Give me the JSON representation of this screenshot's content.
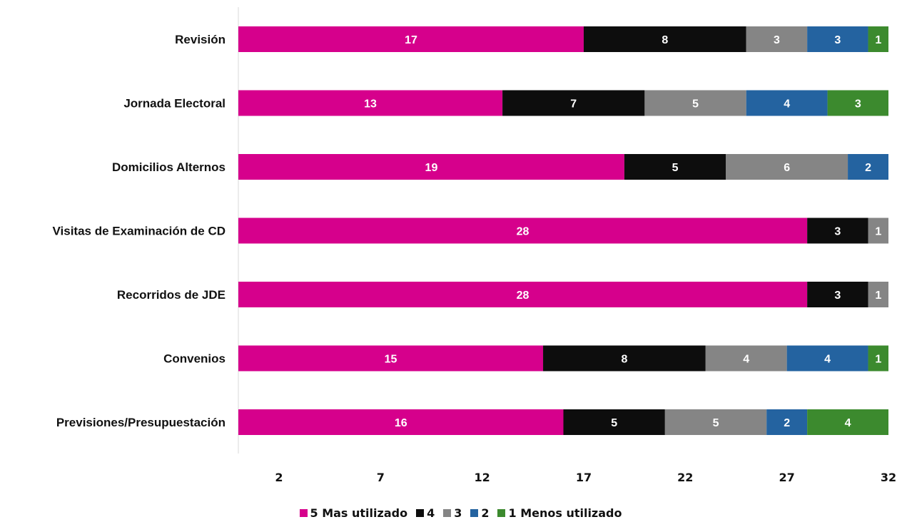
{
  "chart_data": {
    "type": "bar",
    "orientation": "horizontal",
    "stacked": true,
    "categories": [
      "Revisión",
      "Jornada Electoral",
      "Domicilios Alternos",
      "Visitas de Examinación de CD",
      "Recorridos de JDE",
      "Convenios",
      "Previsiones/Presupuestación"
    ],
    "series": [
      {
        "name": "5 Mas utilizado",
        "color": "#d6008c",
        "values": [
          17,
          13,
          19,
          28,
          28,
          15,
          16
        ]
      },
      {
        "name": "4",
        "color": "#0d0d0d",
        "values": [
          8,
          7,
          5,
          3,
          3,
          8,
          5
        ]
      },
      {
        "name": "3",
        "color": "#858585",
        "values": [
          3,
          5,
          6,
          1,
          1,
          4,
          5
        ]
      },
      {
        "name": "2",
        "color": "#2463a0",
        "values": [
          3,
          4,
          2,
          0,
          0,
          4,
          2
        ]
      },
      {
        "name": "1 Menos utilizado",
        "color": "#3c8a2e",
        "values": [
          1,
          3,
          0,
          0,
          0,
          1,
          4
        ]
      }
    ],
    "xlim": [
      0,
      32
    ],
    "xticks": [
      "2",
      "7",
      "12",
      "17",
      "22",
      "27",
      "32"
    ],
    "xtick_values": [
      2,
      7,
      12,
      17,
      22,
      27,
      32
    ],
    "grid": false,
    "legend_position": "bottom",
    "title": "",
    "xlabel": "",
    "ylabel": ""
  }
}
